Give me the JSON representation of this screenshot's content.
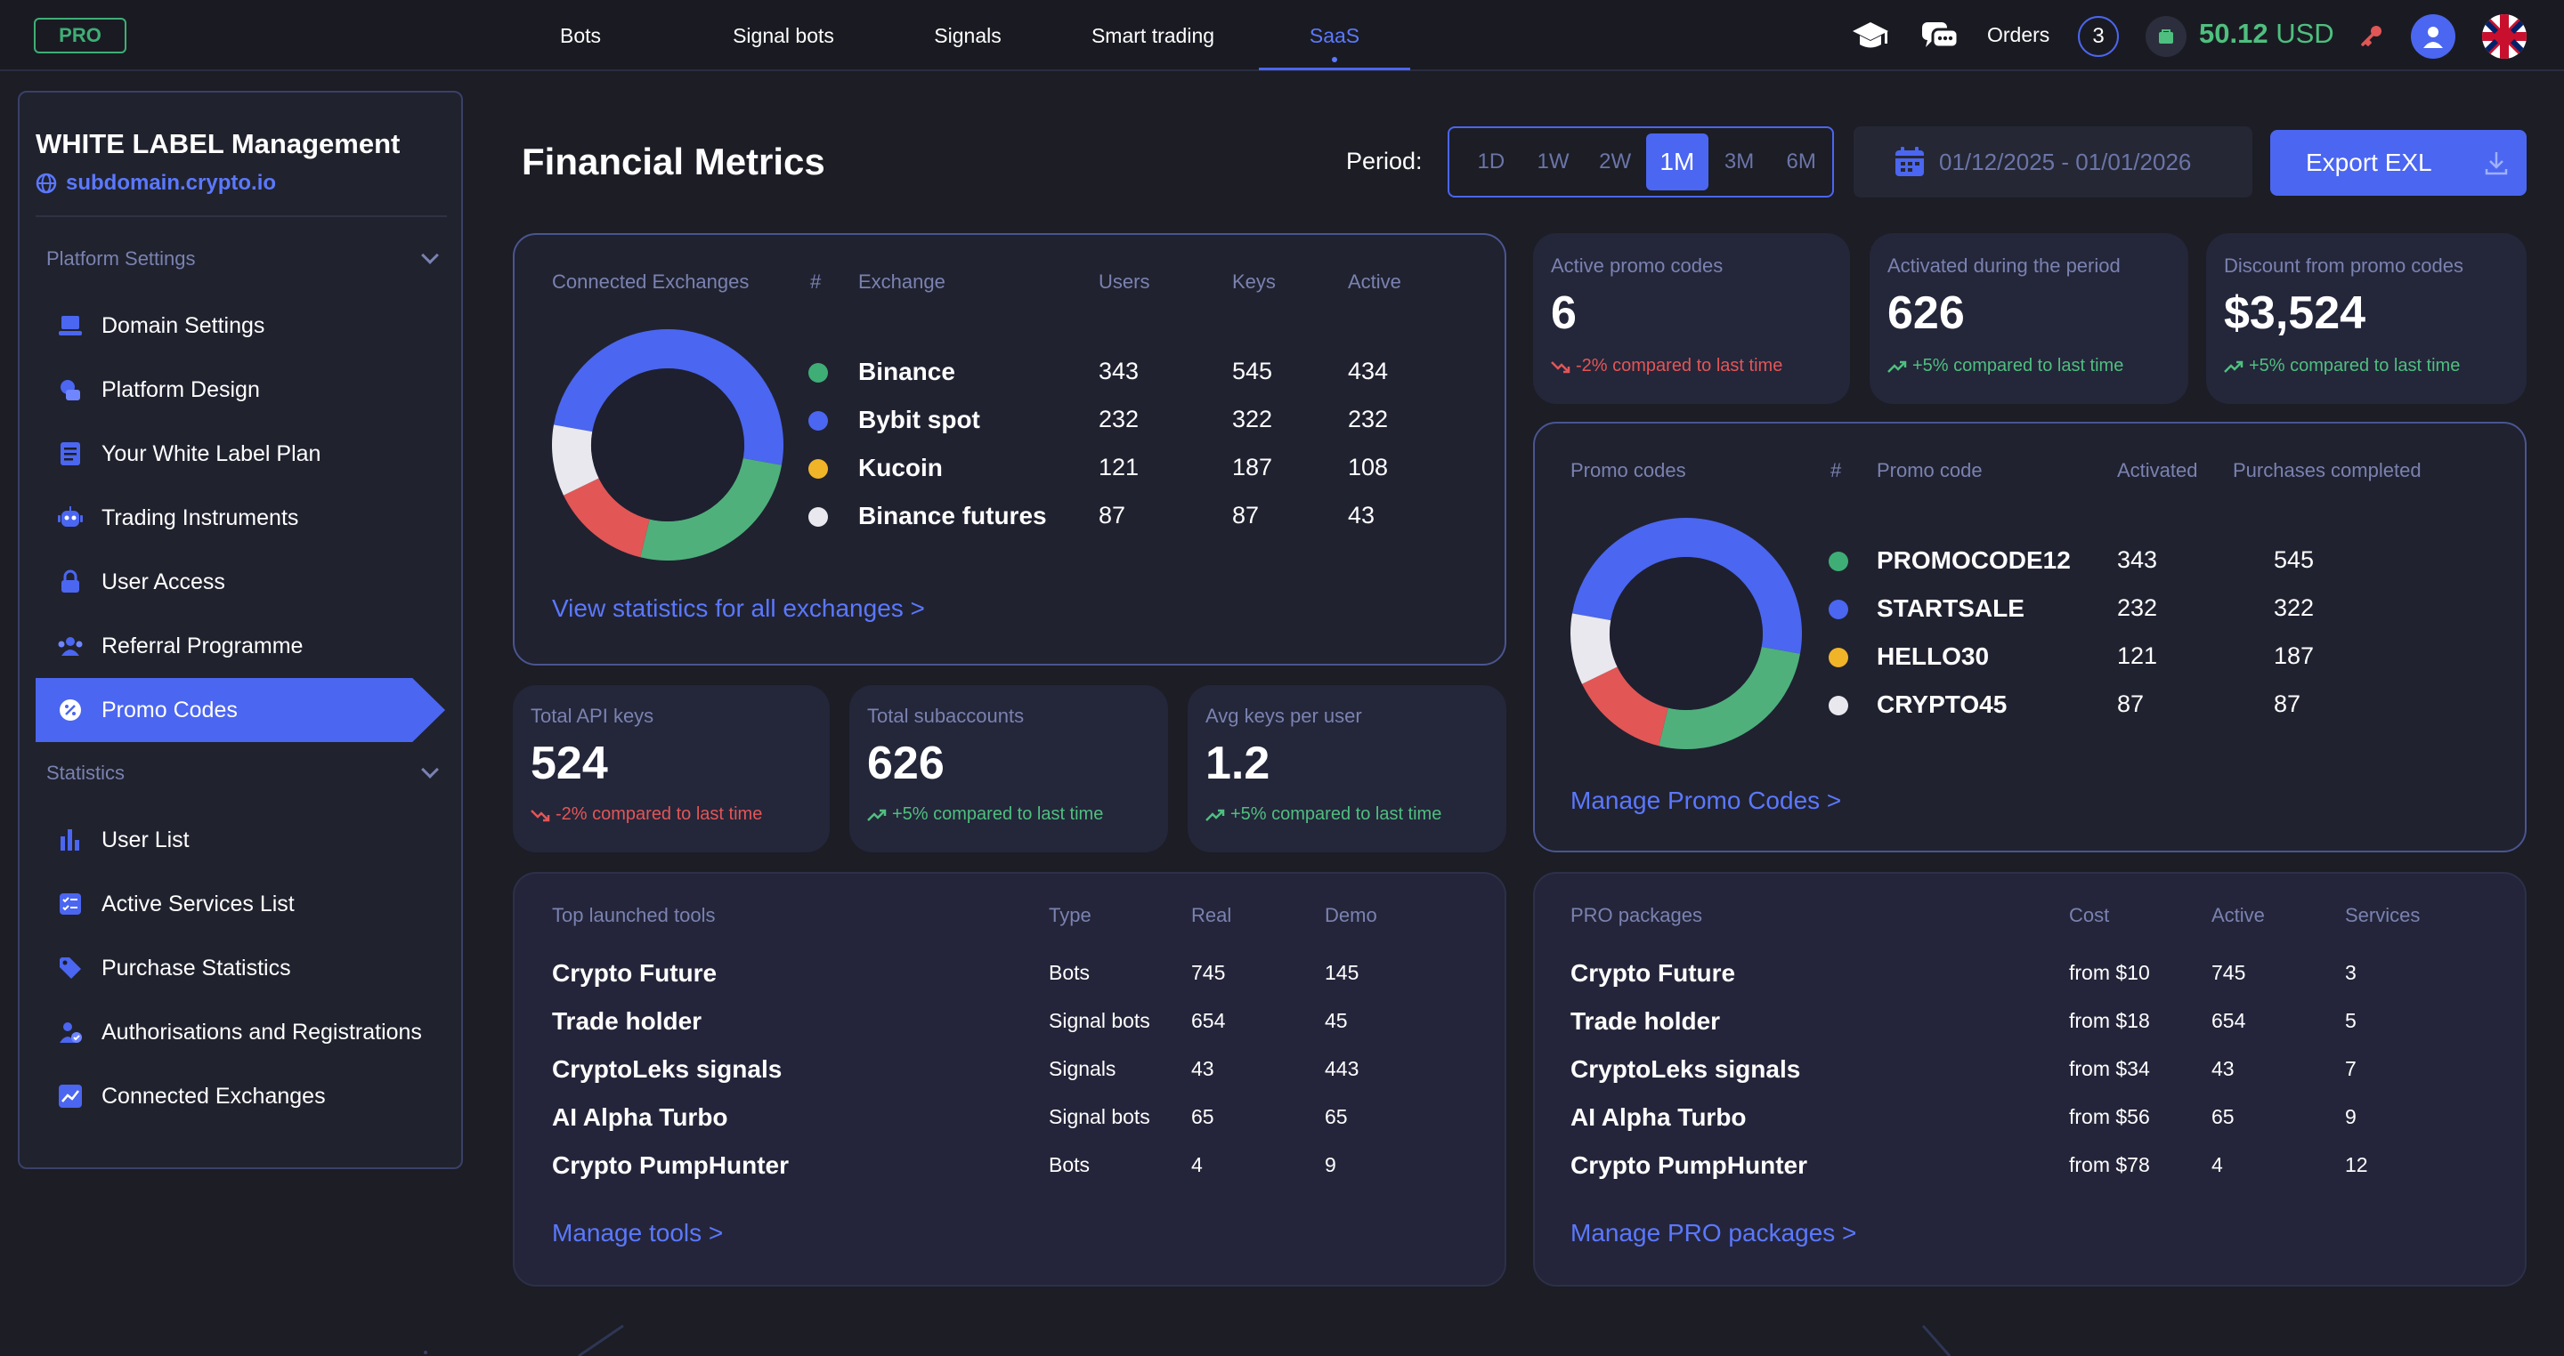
{
  "topbar": {
    "pro_label": "PRO",
    "nav": [
      {
        "label": "Bots"
      },
      {
        "label": "Signal bots"
      },
      {
        "label": "Signals"
      },
      {
        "label": "Smart trading"
      },
      {
        "label": "SaaS",
        "active": true
      }
    ],
    "orders_label": "Orders",
    "orders_count": "3",
    "balance_value": "50.12",
    "balance_currency": "USD",
    "icons": [
      "graduation-cap-icon",
      "chat-icon",
      "wallet-icon",
      "key-icon",
      "user-icon",
      "uk-flag-icon"
    ]
  },
  "sidebar": {
    "title": "WHITE LABEL Management",
    "subdomain": "subdomain.crypto.io",
    "platform_settings_label": "Platform Settings",
    "platform_items": [
      {
        "label": "Domain Settings",
        "icon": "laptop-icon"
      },
      {
        "label": "Platform Design",
        "icon": "palette-icon"
      },
      {
        "label": "Your White Label Plan",
        "icon": "plan-icon"
      },
      {
        "label": "Trading Instruments",
        "icon": "robot-icon"
      },
      {
        "label": "User Access",
        "icon": "lock-icon"
      },
      {
        "label": "Referral Programme",
        "icon": "users-icon"
      },
      {
        "label": "Promo Codes",
        "icon": "percent-badge-icon",
        "active": true
      }
    ],
    "statistics_label": "Statistics",
    "statistics_items": [
      {
        "label": "User List",
        "icon": "bar-chart-icon"
      },
      {
        "label": "Active Services List",
        "icon": "checklist-icon"
      },
      {
        "label": "Purchase Statistics",
        "icon": "tag-icon"
      },
      {
        "label": "Authorisations and Registrations",
        "icon": "user-check-icon"
      },
      {
        "label": "Connected Exchanges",
        "icon": "trend-icon"
      }
    ]
  },
  "main": {
    "title": "Financial Metrics",
    "period_label": "Period:",
    "periods": [
      "1D",
      "1W",
      "2W",
      "1M",
      "3M",
      "6M"
    ],
    "selected_period": "1M",
    "date_range": "01/12/2025 - 01/01/2026",
    "export_label": "Export EXL"
  },
  "exchanges": {
    "headers": {
      "title": "Connected Exchanges",
      "num": "#",
      "exchange": "Exchange",
      "users": "Users",
      "keys": "Keys",
      "active": "Active"
    },
    "rows": [
      {
        "name": "Binance",
        "users": "343",
        "keys": "545",
        "active": "434",
        "color": "#3fae76"
      },
      {
        "name": "Bybit spot",
        "users": "232",
        "keys": "322",
        "active": "232",
        "color": "#4b66f0"
      },
      {
        "name": "Kucoin",
        "users": "121",
        "keys": "187",
        "active": "108",
        "color": "#f0b429"
      },
      {
        "name": "Binance futures",
        "users": "87",
        "keys": "87",
        "active": "43",
        "color": "#e8e8ee"
      }
    ],
    "donut": [
      {
        "color": "#4b66f0",
        "value": 0.5
      },
      {
        "color": "#4fb07c",
        "value": 0.26
      },
      {
        "color": "#e25656",
        "value": 0.14
      },
      {
        "color": "#e8e8ee",
        "value": 0.1
      }
    ],
    "link": "View statistics for all exchanges >"
  },
  "metrics": [
    {
      "title": "Total API keys",
      "value": "524",
      "delta": "-2% compared to last time",
      "dir": "down"
    },
    {
      "title": "Total subaccounts",
      "value": "626",
      "delta": "+5% compared to last time",
      "dir": "up"
    },
    {
      "title": "Avg keys per user",
      "value": "1.2",
      "delta": "+5% compared to last time",
      "dir": "up"
    }
  ],
  "promo_metrics": [
    {
      "title": "Active promo codes",
      "value": "6",
      "delta": "-2% compared to last time",
      "dir": "down"
    },
    {
      "title": "Activated during the period",
      "value": "626",
      "delta": "+5% compared to last time",
      "dir": "up"
    },
    {
      "title": "Discount from promo codes",
      "value": "$3,524",
      "delta": "+5% compared to last time",
      "dir": "up"
    }
  ],
  "promo": {
    "headers": {
      "title": "Promo codes",
      "num": "#",
      "code": "Promo code",
      "activated": "Activated",
      "purchases": "Purchases completed"
    },
    "rows": [
      {
        "code": "PROMOCODE12",
        "activated": "343",
        "purchases": "545",
        "color": "#3fae76"
      },
      {
        "code": "STARTSALE",
        "activated": "232",
        "purchases": "322",
        "color": "#4b66f0"
      },
      {
        "code": "HELLO30",
        "activated": "121",
        "purchases": "187",
        "color": "#f0b429"
      },
      {
        "code": "CRYPTO45",
        "activated": "87",
        "purchases": "87",
        "color": "#e8e8ee"
      }
    ],
    "link": "Manage Promo Codes >"
  },
  "tools": {
    "headers": {
      "title": "Top launched tools",
      "type": "Type",
      "real": "Real",
      "demo": "Demo"
    },
    "rows": [
      {
        "name": "Crypto Future",
        "type": "Bots",
        "real": "745",
        "demo": "145"
      },
      {
        "name": "Trade holder",
        "type": "Signal bots",
        "real": "654",
        "demo": "45"
      },
      {
        "name": "CryptoLeks signals",
        "type": "Signals",
        "real": "43",
        "demo": "443"
      },
      {
        "name": "AI Alpha Turbo",
        "type": "Signal bots",
        "real": "65",
        "demo": "65"
      },
      {
        "name": "Crypto PumpHunter",
        "type": "Bots",
        "real": "4",
        "demo": "9"
      }
    ],
    "link": "Manage tools >"
  },
  "packages": {
    "headers": {
      "title": "PRO packages",
      "cost": "Cost",
      "active": "Active",
      "services": "Services"
    },
    "rows": [
      {
        "name": "Crypto Future",
        "cost": "from $10",
        "active": "745",
        "services": "3"
      },
      {
        "name": "Trade holder",
        "cost": "from $18",
        "active": "654",
        "services": "5"
      },
      {
        "name": "CryptoLeks signals",
        "cost": "from $34",
        "active": "43",
        "services": "7"
      },
      {
        "name": "AI Alpha Turbo",
        "cost": "from $56",
        "active": "65",
        "services": "9"
      },
      {
        "name": "Crypto PumpHunter",
        "cost": "from $78",
        "active": "4",
        "services": "12"
      }
    ],
    "link": "Manage PRO packages >"
  }
}
